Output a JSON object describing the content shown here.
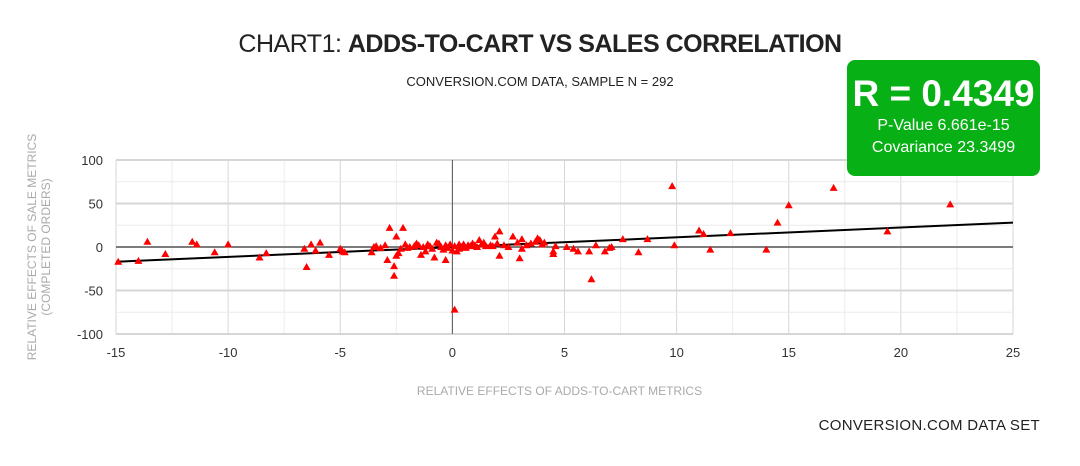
{
  "title": {
    "prefix": "CHART1: ",
    "main": "ADDS-TO-CART VS SALES CORRELATION"
  },
  "subtitle": "CONVERSION.COM DATA, SAMPLE N = 292",
  "stats": {
    "r": "R = 0.4349",
    "p_value": "P-Value 6.661e-15",
    "covariance": "Covariance 23.3499",
    "box_color": "#07b014"
  },
  "footer": "CONVERSION.COM DATA SET",
  "chart_data": {
    "type": "scatter",
    "title": "CHART1: ADDS-TO-CART VS SALES CORRELATION",
    "subtitle": "CONVERSION.COM DATA, SAMPLE N = 292",
    "xlabel": "RELATIVE EFFECTS OF ADDS-TO-CART METRICS",
    "ylabel": [
      "RELATIVE EFFECTS OF SALE METRICS",
      "(COMPLETED ORDERS)"
    ],
    "xlim": [
      -15,
      25
    ],
    "ylim": [
      -100,
      100
    ],
    "xticks": [
      "-15",
      "-10",
      "-5",
      "0",
      "5",
      "10",
      "15",
      "20",
      "25"
    ],
    "yticks": [
      "100",
      "50",
      "0",
      "-50",
      "-100"
    ],
    "grid": true,
    "marker": "triangle",
    "point_color": "#ff0000",
    "trendline": {
      "x": [
        -15,
        25
      ],
      "y": [
        -17,
        28
      ],
      "color": "#000000"
    },
    "points": [
      [
        -14.9,
        -17
      ],
      [
        -14,
        -16
      ],
      [
        -13.6,
        6
      ],
      [
        -12.8,
        -8
      ],
      [
        -11.6,
        6
      ],
      [
        -11.4,
        3
      ],
      [
        -10.6,
        -6
      ],
      [
        -10,
        3
      ],
      [
        -8.6,
        -12
      ],
      [
        -8.3,
        -7
      ],
      [
        -6.6,
        -2
      ],
      [
        -6.5,
        -23
      ],
      [
        -6.3,
        3
      ],
      [
        -6.1,
        -4
      ],
      [
        -5.9,
        5
      ],
      [
        -5.5,
        -9
      ],
      [
        -5,
        -2
      ],
      [
        -4.9,
        -5
      ],
      [
        -4.8,
        -6
      ],
      [
        -3.6,
        -6
      ],
      [
        -3.5,
        0
      ],
      [
        -3.4,
        1
      ],
      [
        -3.2,
        -1
      ],
      [
        -3,
        2
      ],
      [
        -2.8,
        22
      ],
      [
        -2.9,
        -15
      ],
      [
        -2.6,
        -22
      ],
      [
        -2.6,
        -33
      ],
      [
        -2.5,
        -10
      ],
      [
        -2.4,
        -7
      ],
      [
        -2.5,
        12
      ],
      [
        -2.3,
        -2
      ],
      [
        -2.2,
        22
      ],
      [
        -2.1,
        3
      ],
      [
        -2,
        -1
      ],
      [
        -1.9,
        0
      ],
      [
        -1.7,
        1
      ],
      [
        -1.6,
        4
      ],
      [
        -1.5,
        2
      ],
      [
        -1.4,
        -9
      ],
      [
        -1.3,
        0
      ],
      [
        -1.2,
        -5
      ],
      [
        -1.1,
        3
      ],
      [
        -1,
        1
      ],
      [
        -0.9,
        -2
      ],
      [
        -0.8,
        -12
      ],
      [
        -0.7,
        5
      ],
      [
        -0.6,
        4
      ],
      [
        -0.5,
        0
      ],
      [
        -0.4,
        -3
      ],
      [
        -0.3,
        -15
      ],
      [
        -0.3,
        2
      ],
      [
        -0.2,
        -1
      ],
      [
        -0.1,
        3
      ],
      [
        0,
        -4
      ],
      [
        0.1,
        -72
      ],
      [
        0.1,
        1
      ],
      [
        0.2,
        -5
      ],
      [
        0.3,
        3
      ],
      [
        0.3,
        -2
      ],
      [
        0.4,
        0
      ],
      [
        0.5,
        3
      ],
      [
        0.6,
        -1
      ],
      [
        0.7,
        2
      ],
      [
        0.8,
        1
      ],
      [
        0.9,
        4
      ],
      [
        1,
        2
      ],
      [
        1.1,
        0
      ],
      [
        1.2,
        8
      ],
      [
        1.3,
        3
      ],
      [
        1.4,
        5
      ],
      [
        1.5,
        1
      ],
      [
        1.7,
        2
      ],
      [
        1.8,
        1
      ],
      [
        1.9,
        12
      ],
      [
        2,
        4
      ],
      [
        2.1,
        18
      ],
      [
        2.1,
        -10
      ],
      [
        2.3,
        2
      ],
      [
        2.5,
        0
      ],
      [
        2.7,
        12
      ],
      [
        2.9,
        5
      ],
      [
        3,
        -13
      ],
      [
        3.1,
        9
      ],
      [
        3.1,
        -2
      ],
      [
        3.3,
        2
      ],
      [
        3.5,
        4
      ],
      [
        3.7,
        6
      ],
      [
        3.8,
        10
      ],
      [
        3.9,
        8
      ],
      [
        4,
        3
      ],
      [
        4.1,
        5
      ],
      [
        4.5,
        -5
      ],
      [
        4.5,
        -8
      ],
      [
        4.6,
        1
      ],
      [
        5.1,
        0
      ],
      [
        5.4,
        -2
      ],
      [
        5.6,
        -5
      ],
      [
        6.1,
        -5
      ],
      [
        6.2,
        -37
      ],
      [
        6.4,
        2
      ],
      [
        6.8,
        -5
      ],
      [
        7,
        -1
      ],
      [
        7.1,
        0
      ],
      [
        7.6,
        9
      ],
      [
        8.3,
        -6
      ],
      [
        8.7,
        9
      ],
      [
        9.8,
        70
      ],
      [
        9.9,
        2
      ],
      [
        11,
        19
      ],
      [
        11.2,
        15
      ],
      [
        11.5,
        -3
      ],
      [
        12.4,
        16
      ],
      [
        14,
        -3
      ],
      [
        14.5,
        28
      ],
      [
        15,
        48
      ],
      [
        17,
        68
      ],
      [
        19.4,
        18
      ],
      [
        22.2,
        49
      ]
    ]
  }
}
